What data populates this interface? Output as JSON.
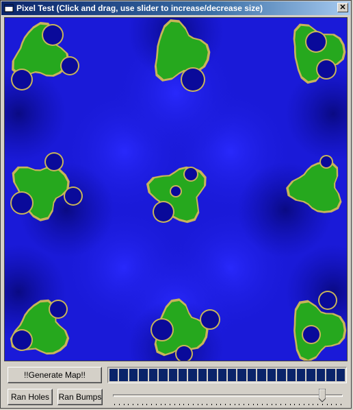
{
  "window": {
    "title": "Pixel Test (Click and drag, use slider to increase/decrease size)",
    "close_label": "✕"
  },
  "icons": {
    "app": "window-icon",
    "close": "close-icon"
  },
  "map": {
    "water_color": "#1a1ad8",
    "deep_water_color": "#0a0a9a",
    "land_color": "#26a81e",
    "shore_color": "#c8b45a"
  },
  "buttons": {
    "generate": "!!Generate Map!!",
    "ran_holes": "Ran Holes",
    "ran_bumps": "Ran Bumps"
  },
  "progress": {
    "value": 1.0,
    "segments": 24
  },
  "slider": {
    "value": 0.91,
    "tick_count": 50
  }
}
